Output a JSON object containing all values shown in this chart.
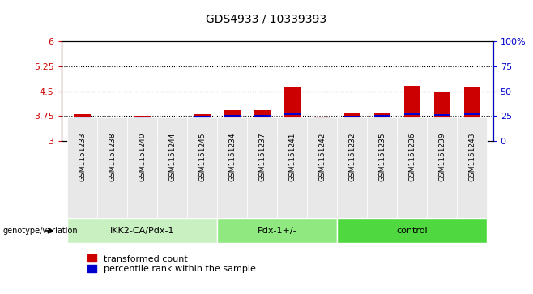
{
  "title": "GDS4933 / 10339393",
  "samples": [
    "GSM1151233",
    "GSM1151238",
    "GSM1151240",
    "GSM1151244",
    "GSM1151245",
    "GSM1151234",
    "GSM1151237",
    "GSM1151241",
    "GSM1151242",
    "GSM1151232",
    "GSM1151235",
    "GSM1151236",
    "GSM1151239",
    "GSM1151243"
  ],
  "bar_values": [
    3.82,
    3.68,
    3.77,
    3.65,
    3.82,
    3.92,
    3.92,
    4.62,
    3.7,
    3.85,
    3.85,
    4.66,
    4.48,
    4.63
  ],
  "percentile_values": [
    3.7,
    3.62,
    3.68,
    3.6,
    3.72,
    3.75,
    3.75,
    3.8,
    3.62,
    3.73,
    3.75,
    3.82,
    3.78,
    3.82
  ],
  "bar_bottom": 3.0,
  "ylim": [
    3.0,
    6.0
  ],
  "y_ticks": [
    3.0,
    3.75,
    4.5,
    5.25,
    6.0
  ],
  "y_tick_labels": [
    "3",
    "3.75",
    "4.5",
    "5.25",
    "6"
  ],
  "right_y_ticks": [
    0,
    25,
    50,
    75,
    100
  ],
  "right_y_tick_labels": [
    "0",
    "25",
    "50",
    "75",
    "100%"
  ],
  "dotted_lines": [
    3.75,
    4.5,
    5.25
  ],
  "groups": [
    {
      "label": "IKK2-CA/Pdx-1",
      "start": 0,
      "end": 5,
      "color": "#c8f0c0"
    },
    {
      "label": "Pdx-1+/-",
      "start": 5,
      "end": 9,
      "color": "#90e880"
    },
    {
      "label": "control",
      "start": 9,
      "end": 14,
      "color": "#50d840"
    }
  ],
  "bar_color": "#cc0000",
  "percentile_color": "#0000cc",
  "background_color": "#ffffff",
  "tick_label_color_left": "#cc0000",
  "tick_label_color_right": "#0000cc",
  "legend_red_label": "transformed count",
  "legend_blue_label": "percentile rank within the sample",
  "genotype_label": "genotype/variation",
  "bar_width": 0.55
}
